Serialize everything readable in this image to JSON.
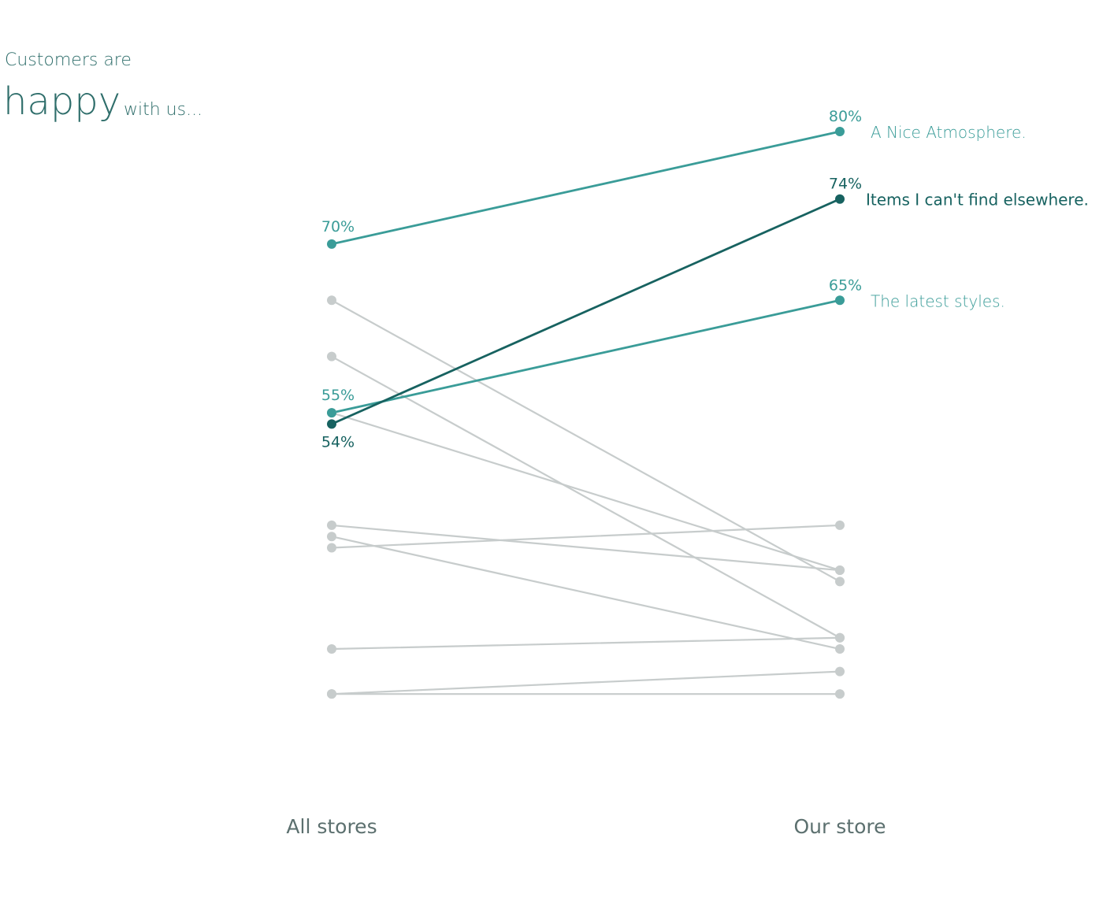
{
  "title": {
    "line1": "Customers are",
    "big": "happy",
    "small": "with us..."
  },
  "colors": {
    "highlight": "#3a9c98",
    "emphasis": "#176260",
    "muted": "#c7cccc",
    "title": "#2f6e6b",
    "axis_label": "#5c706f"
  },
  "chart_data": {
    "type": "line",
    "subtype": "slope",
    "categories": [
      "All stores",
      "Our store"
    ],
    "ylim": [
      20,
      80
    ],
    "grid": false,
    "legend": "none",
    "series": [
      {
        "name": "A Nice Atmosphere.",
        "values": [
          70,
          80
        ],
        "style": "highlight",
        "left_label": "70%",
        "right_label": "80%"
      },
      {
        "name": "Items I can't find elsewhere.",
        "values": [
          54,
          74
        ],
        "style": "emphasis",
        "left_label": "54%",
        "right_label": "74%"
      },
      {
        "name": "The latest styles.",
        "values": [
          55,
          65
        ],
        "style": "highlight",
        "left_label": "55%",
        "right_label": "65%"
      },
      {
        "values": [
          65,
          40
        ],
        "style": "muted"
      },
      {
        "values": [
          60,
          35
        ],
        "style": "muted"
      },
      {
        "values": [
          55,
          41
        ],
        "style": "muted"
      },
      {
        "values": [
          45,
          41
        ],
        "style": "muted"
      },
      {
        "values": [
          44,
          34
        ],
        "style": "muted"
      },
      {
        "values": [
          43,
          45
        ],
        "style": "muted"
      },
      {
        "values": [
          34,
          35
        ],
        "style": "muted"
      },
      {
        "values": [
          30,
          32
        ],
        "style": "muted"
      },
      {
        "values": [
          30,
          30
        ],
        "style": "muted"
      }
    ]
  }
}
